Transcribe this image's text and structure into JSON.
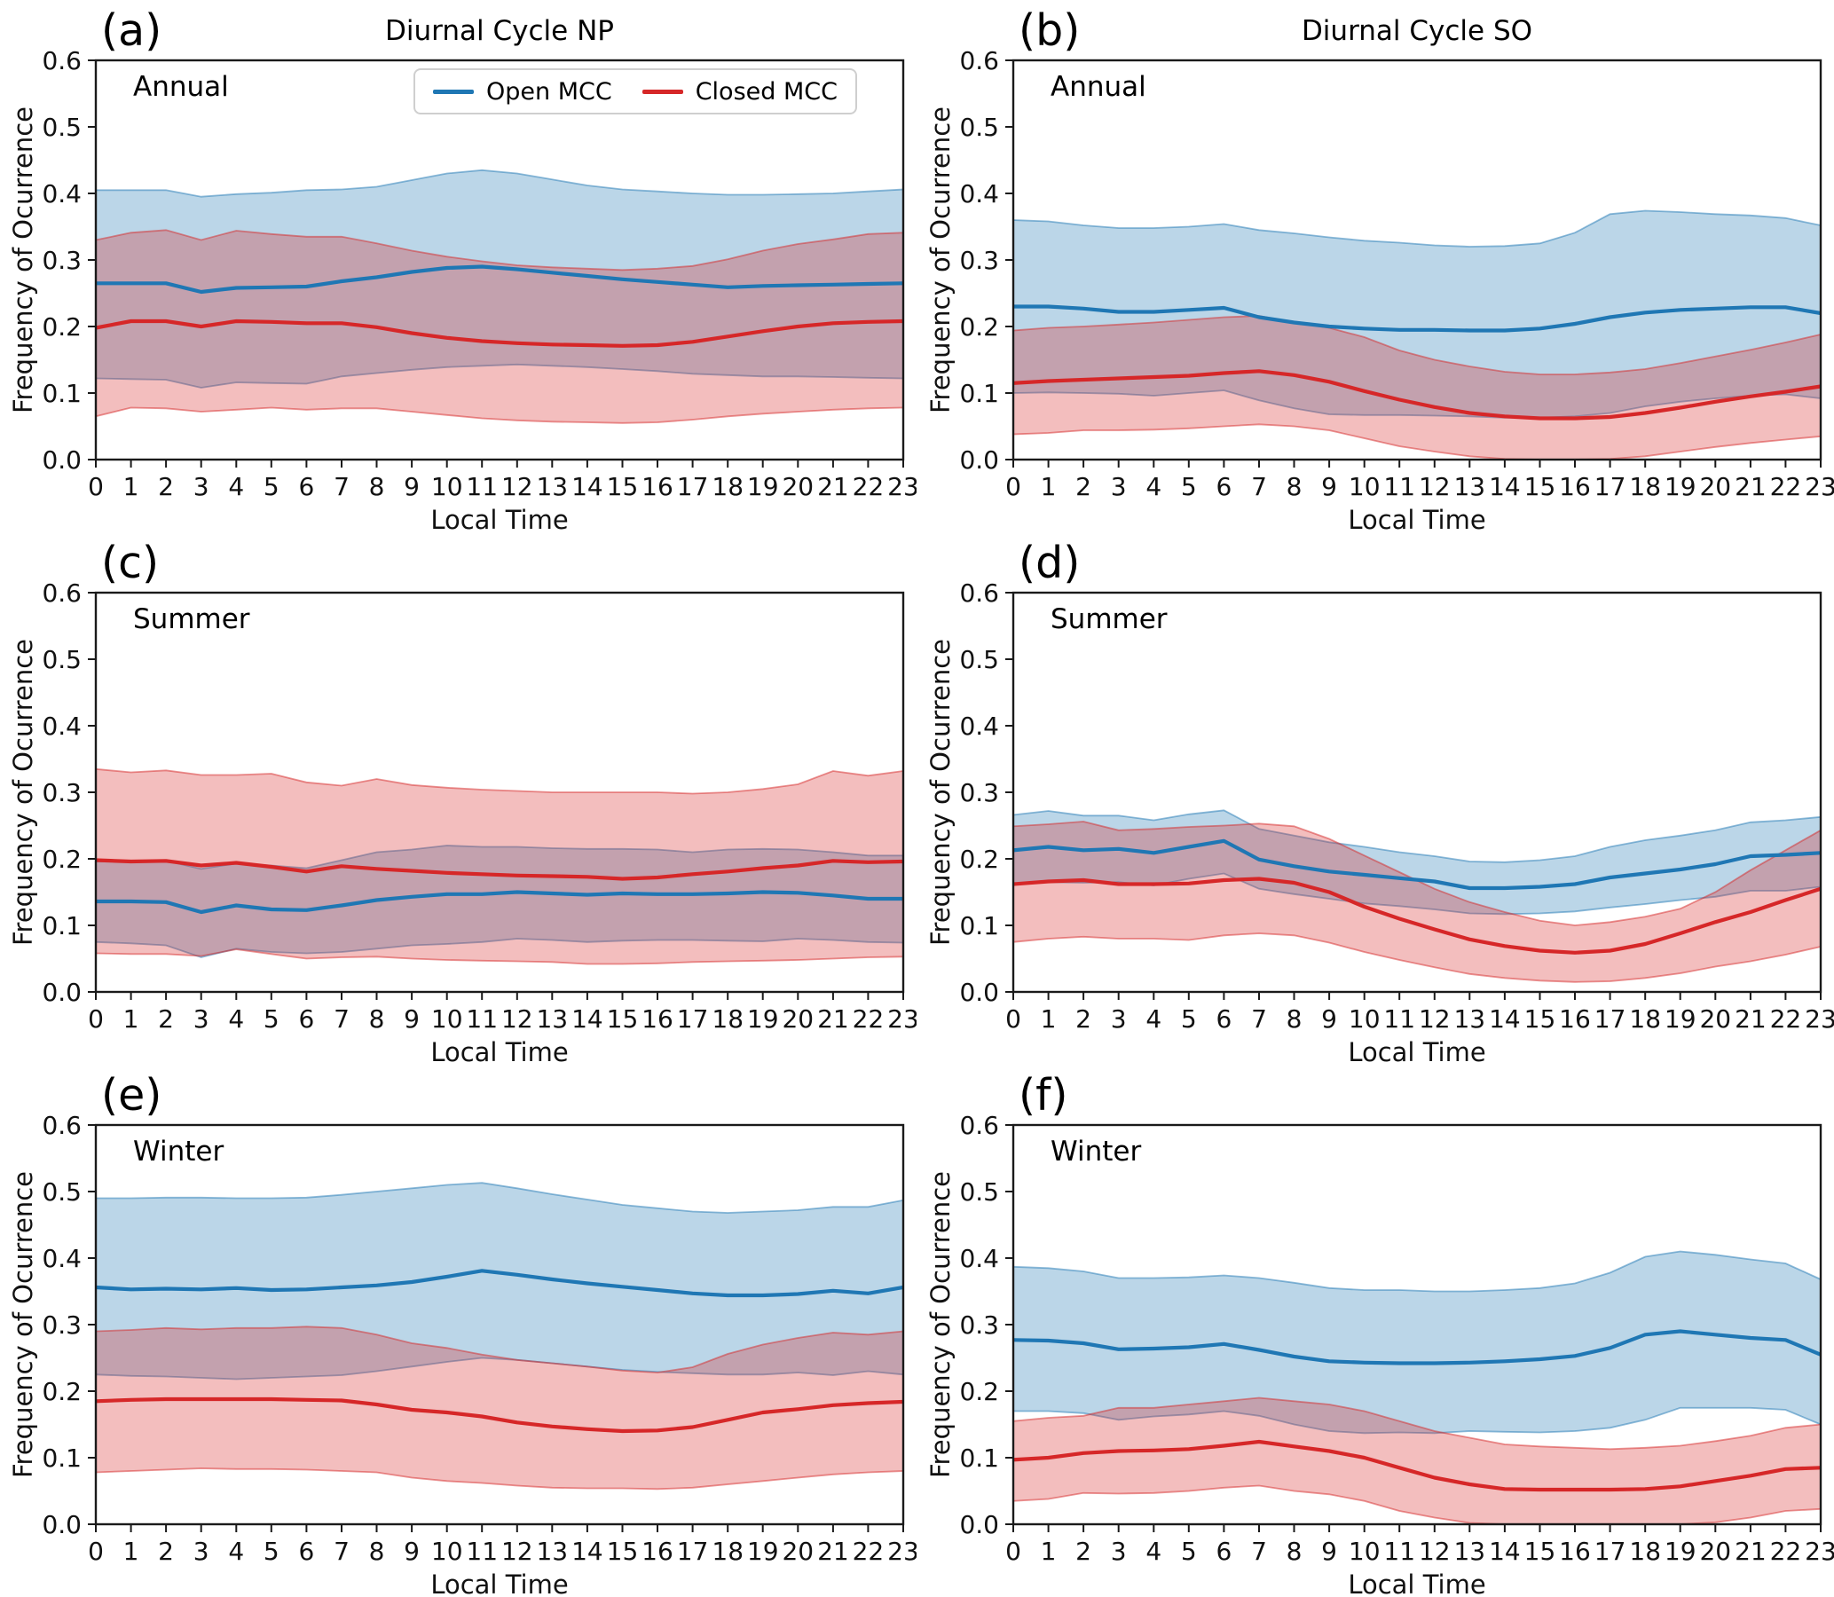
{
  "chart_data": {
    "type": "line",
    "x_label": "Local Time",
    "y_label": "Frequency of Ocurrence",
    "hours": [
      0,
      1,
      2,
      3,
      4,
      5,
      6,
      7,
      8,
      9,
      10,
      11,
      12,
      13,
      14,
      15,
      16,
      17,
      18,
      19,
      20,
      21,
      22,
      23
    ],
    "ylim": [
      0.0,
      0.6
    ],
    "yticks": [
      0.0,
      0.1,
      0.2,
      0.3,
      0.4,
      0.5,
      0.6
    ],
    "grid": false,
    "legend": [
      "Open MCC",
      "Closed MCC"
    ],
    "legend_position": "upper center panel (a) only",
    "colors": {
      "open": "#1f77b4",
      "closed": "#d62728",
      "band_alpha": 0.3
    },
    "panels": [
      {
        "id": "(a)",
        "title": "Diurnal Cycle NP",
        "season": "Annual",
        "legend": true,
        "open_mcc": {
          "mean": [
            0.265,
            0.265,
            0.265,
            0.252,
            0.258,
            0.259,
            0.26,
            0.268,
            0.274,
            0.282,
            0.288,
            0.29,
            0.286,
            0.281,
            0.276,
            0.271,
            0.267,
            0.263,
            0.259,
            0.261,
            0.262,
            0.263,
            0.264,
            0.265
          ],
          "upper": [
            0.405,
            0.405,
            0.405,
            0.395,
            0.399,
            0.401,
            0.405,
            0.406,
            0.41,
            0.42,
            0.43,
            0.435,
            0.43,
            0.421,
            0.412,
            0.406,
            0.403,
            0.4,
            0.398,
            0.398,
            0.399,
            0.4,
            0.403,
            0.406
          ],
          "lower": [
            0.122,
            0.121,
            0.12,
            0.108,
            0.116,
            0.115,
            0.114,
            0.125,
            0.13,
            0.135,
            0.139,
            0.141,
            0.143,
            0.141,
            0.139,
            0.136,
            0.133,
            0.129,
            0.127,
            0.125,
            0.125,
            0.124,
            0.123,
            0.122
          ]
        },
        "closed_mcc": {
          "mean": [
            0.198,
            0.208,
            0.208,
            0.2,
            0.208,
            0.207,
            0.205,
            0.205,
            0.199,
            0.19,
            0.183,
            0.178,
            0.175,
            0.173,
            0.172,
            0.171,
            0.172,
            0.177,
            0.185,
            0.193,
            0.2,
            0.205,
            0.207,
            0.208
          ],
          "upper": [
            0.33,
            0.341,
            0.345,
            0.33,
            0.344,
            0.339,
            0.335,
            0.335,
            0.325,
            0.314,
            0.305,
            0.298,
            0.292,
            0.289,
            0.287,
            0.285,
            0.287,
            0.291,
            0.301,
            0.314,
            0.324,
            0.331,
            0.339,
            0.341
          ],
          "lower": [
            0.065,
            0.078,
            0.077,
            0.072,
            0.075,
            0.078,
            0.075,
            0.077,
            0.077,
            0.072,
            0.067,
            0.062,
            0.059,
            0.057,
            0.056,
            0.055,
            0.056,
            0.06,
            0.065,
            0.069,
            0.072,
            0.075,
            0.077,
            0.078
          ]
        }
      },
      {
        "id": "(b)",
        "title": "Diurnal Cycle SO",
        "season": "Annual",
        "legend": false,
        "open_mcc": {
          "mean": [
            0.23,
            0.23,
            0.227,
            0.222,
            0.222,
            0.225,
            0.228,
            0.214,
            0.206,
            0.2,
            0.197,
            0.195,
            0.195,
            0.194,
            0.194,
            0.197,
            0.204,
            0.214,
            0.221,
            0.225,
            0.227,
            0.229,
            0.229,
            0.22
          ],
          "upper": [
            0.36,
            0.358,
            0.352,
            0.348,
            0.348,
            0.35,
            0.354,
            0.345,
            0.34,
            0.334,
            0.329,
            0.326,
            0.322,
            0.32,
            0.321,
            0.325,
            0.341,
            0.369,
            0.374,
            0.372,
            0.369,
            0.367,
            0.363,
            0.352
          ],
          "lower": [
            0.1,
            0.101,
            0.1,
            0.099,
            0.096,
            0.1,
            0.104,
            0.089,
            0.077,
            0.068,
            0.067,
            0.067,
            0.066,
            0.065,
            0.063,
            0.063,
            0.065,
            0.07,
            0.08,
            0.087,
            0.092,
            0.096,
            0.098,
            0.092
          ]
        },
        "closed_mcc": {
          "mean": [
            0.115,
            0.118,
            0.12,
            0.122,
            0.124,
            0.126,
            0.13,
            0.133,
            0.127,
            0.117,
            0.103,
            0.09,
            0.079,
            0.07,
            0.065,
            0.062,
            0.062,
            0.064,
            0.07,
            0.078,
            0.087,
            0.095,
            0.102,
            0.11
          ],
          "upper": [
            0.194,
            0.198,
            0.2,
            0.203,
            0.206,
            0.21,
            0.214,
            0.216,
            0.206,
            0.198,
            0.184,
            0.164,
            0.15,
            0.14,
            0.132,
            0.128,
            0.128,
            0.131,
            0.136,
            0.145,
            0.155,
            0.165,
            0.176,
            0.188
          ],
          "lower": [
            0.038,
            0.04,
            0.044,
            0.044,
            0.045,
            0.047,
            0.05,
            0.053,
            0.05,
            0.044,
            0.032,
            0.02,
            0.012,
            0.005,
            0.001,
            0.0,
            0.0,
            0.001,
            0.005,
            0.012,
            0.019,
            0.025,
            0.03,
            0.035
          ]
        }
      },
      {
        "id": "(c)",
        "title": "",
        "season": "Summer",
        "legend": false,
        "open_mcc": {
          "mean": [
            0.136,
            0.136,
            0.135,
            0.12,
            0.13,
            0.124,
            0.123,
            0.13,
            0.138,
            0.143,
            0.147,
            0.147,
            0.15,
            0.148,
            0.146,
            0.148,
            0.147,
            0.147,
            0.148,
            0.15,
            0.149,
            0.145,
            0.14,
            0.14
          ],
          "upper": [
            0.196,
            0.196,
            0.197,
            0.185,
            0.193,
            0.19,
            0.186,
            0.198,
            0.21,
            0.214,
            0.22,
            0.218,
            0.218,
            0.216,
            0.215,
            0.215,
            0.214,
            0.21,
            0.214,
            0.215,
            0.214,
            0.21,
            0.205,
            0.205
          ],
          "lower": [
            0.075,
            0.073,
            0.07,
            0.052,
            0.065,
            0.06,
            0.058,
            0.06,
            0.065,
            0.07,
            0.072,
            0.075,
            0.08,
            0.078,
            0.075,
            0.077,
            0.078,
            0.078,
            0.077,
            0.076,
            0.08,
            0.078,
            0.075,
            0.074
          ]
        },
        "closed_mcc": {
          "mean": [
            0.198,
            0.196,
            0.197,
            0.19,
            0.194,
            0.188,
            0.181,
            0.189,
            0.185,
            0.182,
            0.179,
            0.177,
            0.175,
            0.174,
            0.173,
            0.17,
            0.172,
            0.177,
            0.181,
            0.186,
            0.19,
            0.197,
            0.195,
            0.196
          ],
          "upper": [
            0.335,
            0.33,
            0.333,
            0.326,
            0.326,
            0.328,
            0.315,
            0.31,
            0.32,
            0.311,
            0.307,
            0.304,
            0.302,
            0.3,
            0.3,
            0.3,
            0.3,
            0.298,
            0.3,
            0.305,
            0.312,
            0.332,
            0.325,
            0.332
          ],
          "lower": [
            0.058,
            0.057,
            0.057,
            0.054,
            0.064,
            0.057,
            0.05,
            0.052,
            0.053,
            0.05,
            0.048,
            0.047,
            0.046,
            0.045,
            0.042,
            0.042,
            0.043,
            0.045,
            0.046,
            0.047,
            0.048,
            0.05,
            0.052,
            0.053
          ]
        }
      },
      {
        "id": "(d)",
        "title": "",
        "season": "Summer",
        "legend": false,
        "open_mcc": {
          "mean": [
            0.213,
            0.218,
            0.213,
            0.215,
            0.209,
            0.218,
            0.227,
            0.199,
            0.189,
            0.181,
            0.176,
            0.171,
            0.166,
            0.156,
            0.156,
            0.158,
            0.162,
            0.172,
            0.178,
            0.184,
            0.192,
            0.204,
            0.206,
            0.209
          ],
          "upper": [
            0.266,
            0.272,
            0.265,
            0.265,
            0.258,
            0.267,
            0.273,
            0.245,
            0.235,
            0.225,
            0.218,
            0.21,
            0.204,
            0.196,
            0.195,
            0.198,
            0.204,
            0.218,
            0.228,
            0.235,
            0.243,
            0.255,
            0.258,
            0.263
          ],
          "lower": [
            0.163,
            0.165,
            0.164,
            0.165,
            0.16,
            0.17,
            0.178,
            0.155,
            0.147,
            0.14,
            0.133,
            0.129,
            0.124,
            0.118,
            0.117,
            0.118,
            0.121,
            0.127,
            0.132,
            0.138,
            0.143,
            0.152,
            0.152,
            0.158
          ]
        },
        "closed_mcc": {
          "mean": [
            0.162,
            0.166,
            0.168,
            0.162,
            0.162,
            0.163,
            0.168,
            0.17,
            0.164,
            0.15,
            0.128,
            0.11,
            0.094,
            0.079,
            0.069,
            0.062,
            0.059,
            0.062,
            0.072,
            0.088,
            0.105,
            0.12,
            0.138,
            0.155
          ],
          "upper": [
            0.249,
            0.252,
            0.256,
            0.243,
            0.245,
            0.248,
            0.25,
            0.253,
            0.249,
            0.23,
            0.205,
            0.18,
            0.155,
            0.135,
            0.12,
            0.107,
            0.1,
            0.105,
            0.113,
            0.125,
            0.15,
            0.183,
            0.213,
            0.243
          ],
          "lower": [
            0.075,
            0.08,
            0.083,
            0.08,
            0.08,
            0.078,
            0.085,
            0.088,
            0.085,
            0.074,
            0.06,
            0.048,
            0.037,
            0.027,
            0.021,
            0.017,
            0.015,
            0.016,
            0.021,
            0.028,
            0.038,
            0.046,
            0.056,
            0.068
          ]
        }
      },
      {
        "id": "(e)",
        "title": "",
        "season": "Winter",
        "legend": false,
        "open_mcc": {
          "mean": [
            0.356,
            0.353,
            0.354,
            0.353,
            0.355,
            0.352,
            0.353,
            0.356,
            0.359,
            0.364,
            0.372,
            0.381,
            0.375,
            0.368,
            0.362,
            0.357,
            0.352,
            0.347,
            0.344,
            0.344,
            0.346,
            0.351,
            0.347,
            0.356
          ],
          "upper": [
            0.49,
            0.49,
            0.491,
            0.491,
            0.49,
            0.49,
            0.491,
            0.495,
            0.5,
            0.505,
            0.51,
            0.513,
            0.505,
            0.496,
            0.488,
            0.48,
            0.475,
            0.47,
            0.468,
            0.47,
            0.472,
            0.477,
            0.477,
            0.487
          ],
          "lower": [
            0.225,
            0.223,
            0.222,
            0.22,
            0.218,
            0.22,
            0.222,
            0.224,
            0.23,
            0.237,
            0.244,
            0.25,
            0.247,
            0.242,
            0.237,
            0.232,
            0.229,
            0.227,
            0.225,
            0.225,
            0.228,
            0.224,
            0.23,
            0.225
          ]
        },
        "closed_mcc": {
          "mean": [
            0.185,
            0.187,
            0.188,
            0.188,
            0.188,
            0.188,
            0.187,
            0.186,
            0.18,
            0.172,
            0.168,
            0.162,
            0.153,
            0.147,
            0.143,
            0.14,
            0.141,
            0.146,
            0.157,
            0.168,
            0.173,
            0.179,
            0.182,
            0.184
          ],
          "upper": [
            0.29,
            0.292,
            0.295,
            0.293,
            0.295,
            0.295,
            0.297,
            0.295,
            0.285,
            0.272,
            0.265,
            0.255,
            0.247,
            0.242,
            0.237,
            0.231,
            0.228,
            0.236,
            0.256,
            0.27,
            0.28,
            0.288,
            0.285,
            0.29
          ],
          "lower": [
            0.078,
            0.08,
            0.082,
            0.084,
            0.083,
            0.083,
            0.082,
            0.08,
            0.078,
            0.07,
            0.065,
            0.062,
            0.058,
            0.055,
            0.054,
            0.054,
            0.053,
            0.055,
            0.06,
            0.065,
            0.07,
            0.075,
            0.078,
            0.08
          ]
        }
      },
      {
        "id": "(f)",
        "title": "",
        "season": "Winter",
        "legend": false,
        "open_mcc": {
          "mean": [
            0.277,
            0.276,
            0.272,
            0.263,
            0.264,
            0.266,
            0.271,
            0.262,
            0.252,
            0.245,
            0.243,
            0.242,
            0.242,
            0.243,
            0.245,
            0.248,
            0.253,
            0.265,
            0.285,
            0.29,
            0.285,
            0.28,
            0.277,
            0.255
          ],
          "upper": [
            0.387,
            0.385,
            0.38,
            0.37,
            0.37,
            0.371,
            0.374,
            0.37,
            0.363,
            0.355,
            0.352,
            0.352,
            0.35,
            0.35,
            0.352,
            0.355,
            0.362,
            0.378,
            0.402,
            0.41,
            0.405,
            0.398,
            0.392,
            0.368
          ],
          "lower": [
            0.17,
            0.17,
            0.167,
            0.157,
            0.162,
            0.165,
            0.17,
            0.163,
            0.15,
            0.14,
            0.137,
            0.138,
            0.137,
            0.14,
            0.139,
            0.138,
            0.14,
            0.145,
            0.157,
            0.175,
            0.175,
            0.175,
            0.172,
            0.15
          ]
        },
        "closed_mcc": {
          "mean": [
            0.097,
            0.1,
            0.107,
            0.11,
            0.111,
            0.113,
            0.118,
            0.124,
            0.117,
            0.11,
            0.1,
            0.085,
            0.07,
            0.06,
            0.053,
            0.052,
            0.052,
            0.052,
            0.053,
            0.057,
            0.065,
            0.073,
            0.083,
            0.085
          ],
          "upper": [
            0.155,
            0.16,
            0.163,
            0.175,
            0.175,
            0.18,
            0.185,
            0.19,
            0.185,
            0.18,
            0.17,
            0.155,
            0.14,
            0.13,
            0.12,
            0.117,
            0.115,
            0.113,
            0.115,
            0.118,
            0.125,
            0.133,
            0.145,
            0.15
          ],
          "lower": [
            0.035,
            0.038,
            0.047,
            0.046,
            0.047,
            0.05,
            0.055,
            0.058,
            0.05,
            0.045,
            0.035,
            0.02,
            0.01,
            0.002,
            0.0,
            0.0,
            0.0,
            0.0,
            0.0,
            0.0,
            0.003,
            0.01,
            0.02,
            0.023
          ]
        }
      }
    ]
  }
}
